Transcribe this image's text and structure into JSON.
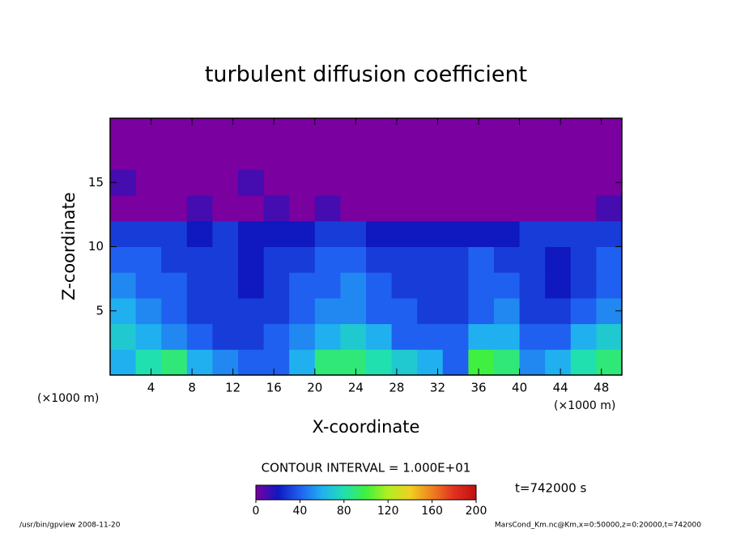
{
  "chart_data": {
    "type": "heatmap",
    "title": "turbulent diffusion coefficient",
    "x_label": "X-coordinate",
    "y_label": "Z-coordinate",
    "x_unit": "(×1000 m)",
    "xlim": [
      0,
      50
    ],
    "xticks": [
      4,
      8,
      12,
      16,
      20,
      24,
      28,
      32,
      36,
      40,
      44,
      48
    ],
    "ylim": [
      0,
      20
    ],
    "yticks": [
      5,
      10,
      15
    ],
    "x": [
      1.25,
      3.75,
      6.25,
      8.75,
      11.25,
      13.75,
      16.25,
      18.75,
      21.25,
      23.75,
      26.25,
      28.75,
      31.25,
      33.75,
      36.25,
      38.75,
      41.25,
      43.75,
      46.25,
      48.75
    ],
    "y": [
      1,
      3,
      5,
      7,
      9,
      11,
      13,
      15,
      17,
      19
    ],
    "values": [
      [
        60,
        80,
        90,
        60,
        50,
        40,
        40,
        60,
        90,
        90,
        80,
        70,
        60,
        40,
        100,
        90,
        50,
        60,
        80,
        90
      ],
      [
        70,
        60,
        50,
        40,
        30,
        30,
        40,
        50,
        60,
        70,
        60,
        40,
        40,
        40,
        60,
        60,
        40,
        40,
        60,
        70
      ],
      [
        60,
        50,
        40,
        30,
        30,
        30,
        30,
        40,
        50,
        50,
        40,
        40,
        30,
        30,
        40,
        50,
        30,
        30,
        40,
        50
      ],
      [
        50,
        40,
        40,
        30,
        30,
        20,
        30,
        40,
        40,
        50,
        40,
        30,
        30,
        30,
        40,
        40,
        30,
        20,
        30,
        40
      ],
      [
        40,
        40,
        30,
        30,
        30,
        20,
        30,
        30,
        40,
        40,
        30,
        30,
        30,
        30,
        40,
        30,
        30,
        20,
        30,
        40
      ],
      [
        30,
        30,
        30,
        20,
        30,
        20,
        20,
        20,
        30,
        30,
        20,
        20,
        20,
        20,
        20,
        20,
        30,
        30,
        30,
        30
      ],
      [
        0,
        0,
        0,
        10,
        0,
        0,
        10,
        0,
        10,
        0,
        0,
        0,
        0,
        0,
        0,
        0,
        0,
        0,
        0,
        10
      ],
      [
        10,
        0,
        0,
        0,
        0,
        10,
        0,
        0,
        0,
        0,
        0,
        0,
        0,
        0,
        0,
        0,
        0,
        0,
        0,
        0
      ],
      [
        0,
        0,
        0,
        0,
        0,
        0,
        0,
        0,
        0,
        0,
        0,
        0,
        0,
        0,
        0,
        0,
        0,
        0,
        0,
        0
      ],
      [
        0,
        0,
        0,
        0,
        0,
        0,
        0,
        0,
        0,
        0,
        0,
        0,
        0,
        0,
        0,
        0,
        0,
        0,
        0,
        0
      ]
    ],
    "colormap": [
      "#7a00a0",
      "#1018c0",
      "#2060f0",
      "#20b0f0",
      "#20e0b0",
      "#40f040",
      "#b0f020",
      "#f0d020",
      "#f08020",
      "#e03020",
      "#c01010"
    ],
    "clim": [
      0,
      200
    ],
    "colorbar_ticks": [
      0,
      40,
      80,
      120,
      160,
      200
    ],
    "contour_interval_text": "CONTOUR INTERVAL = 1.000E+01",
    "time_text": "t=742000 s",
    "footer_left": "/usr/bin/gpview  2008-11-20",
    "footer_right": "MarsCond_Km.nc@Km,x=0:50000,z=0:20000,t=742000"
  }
}
